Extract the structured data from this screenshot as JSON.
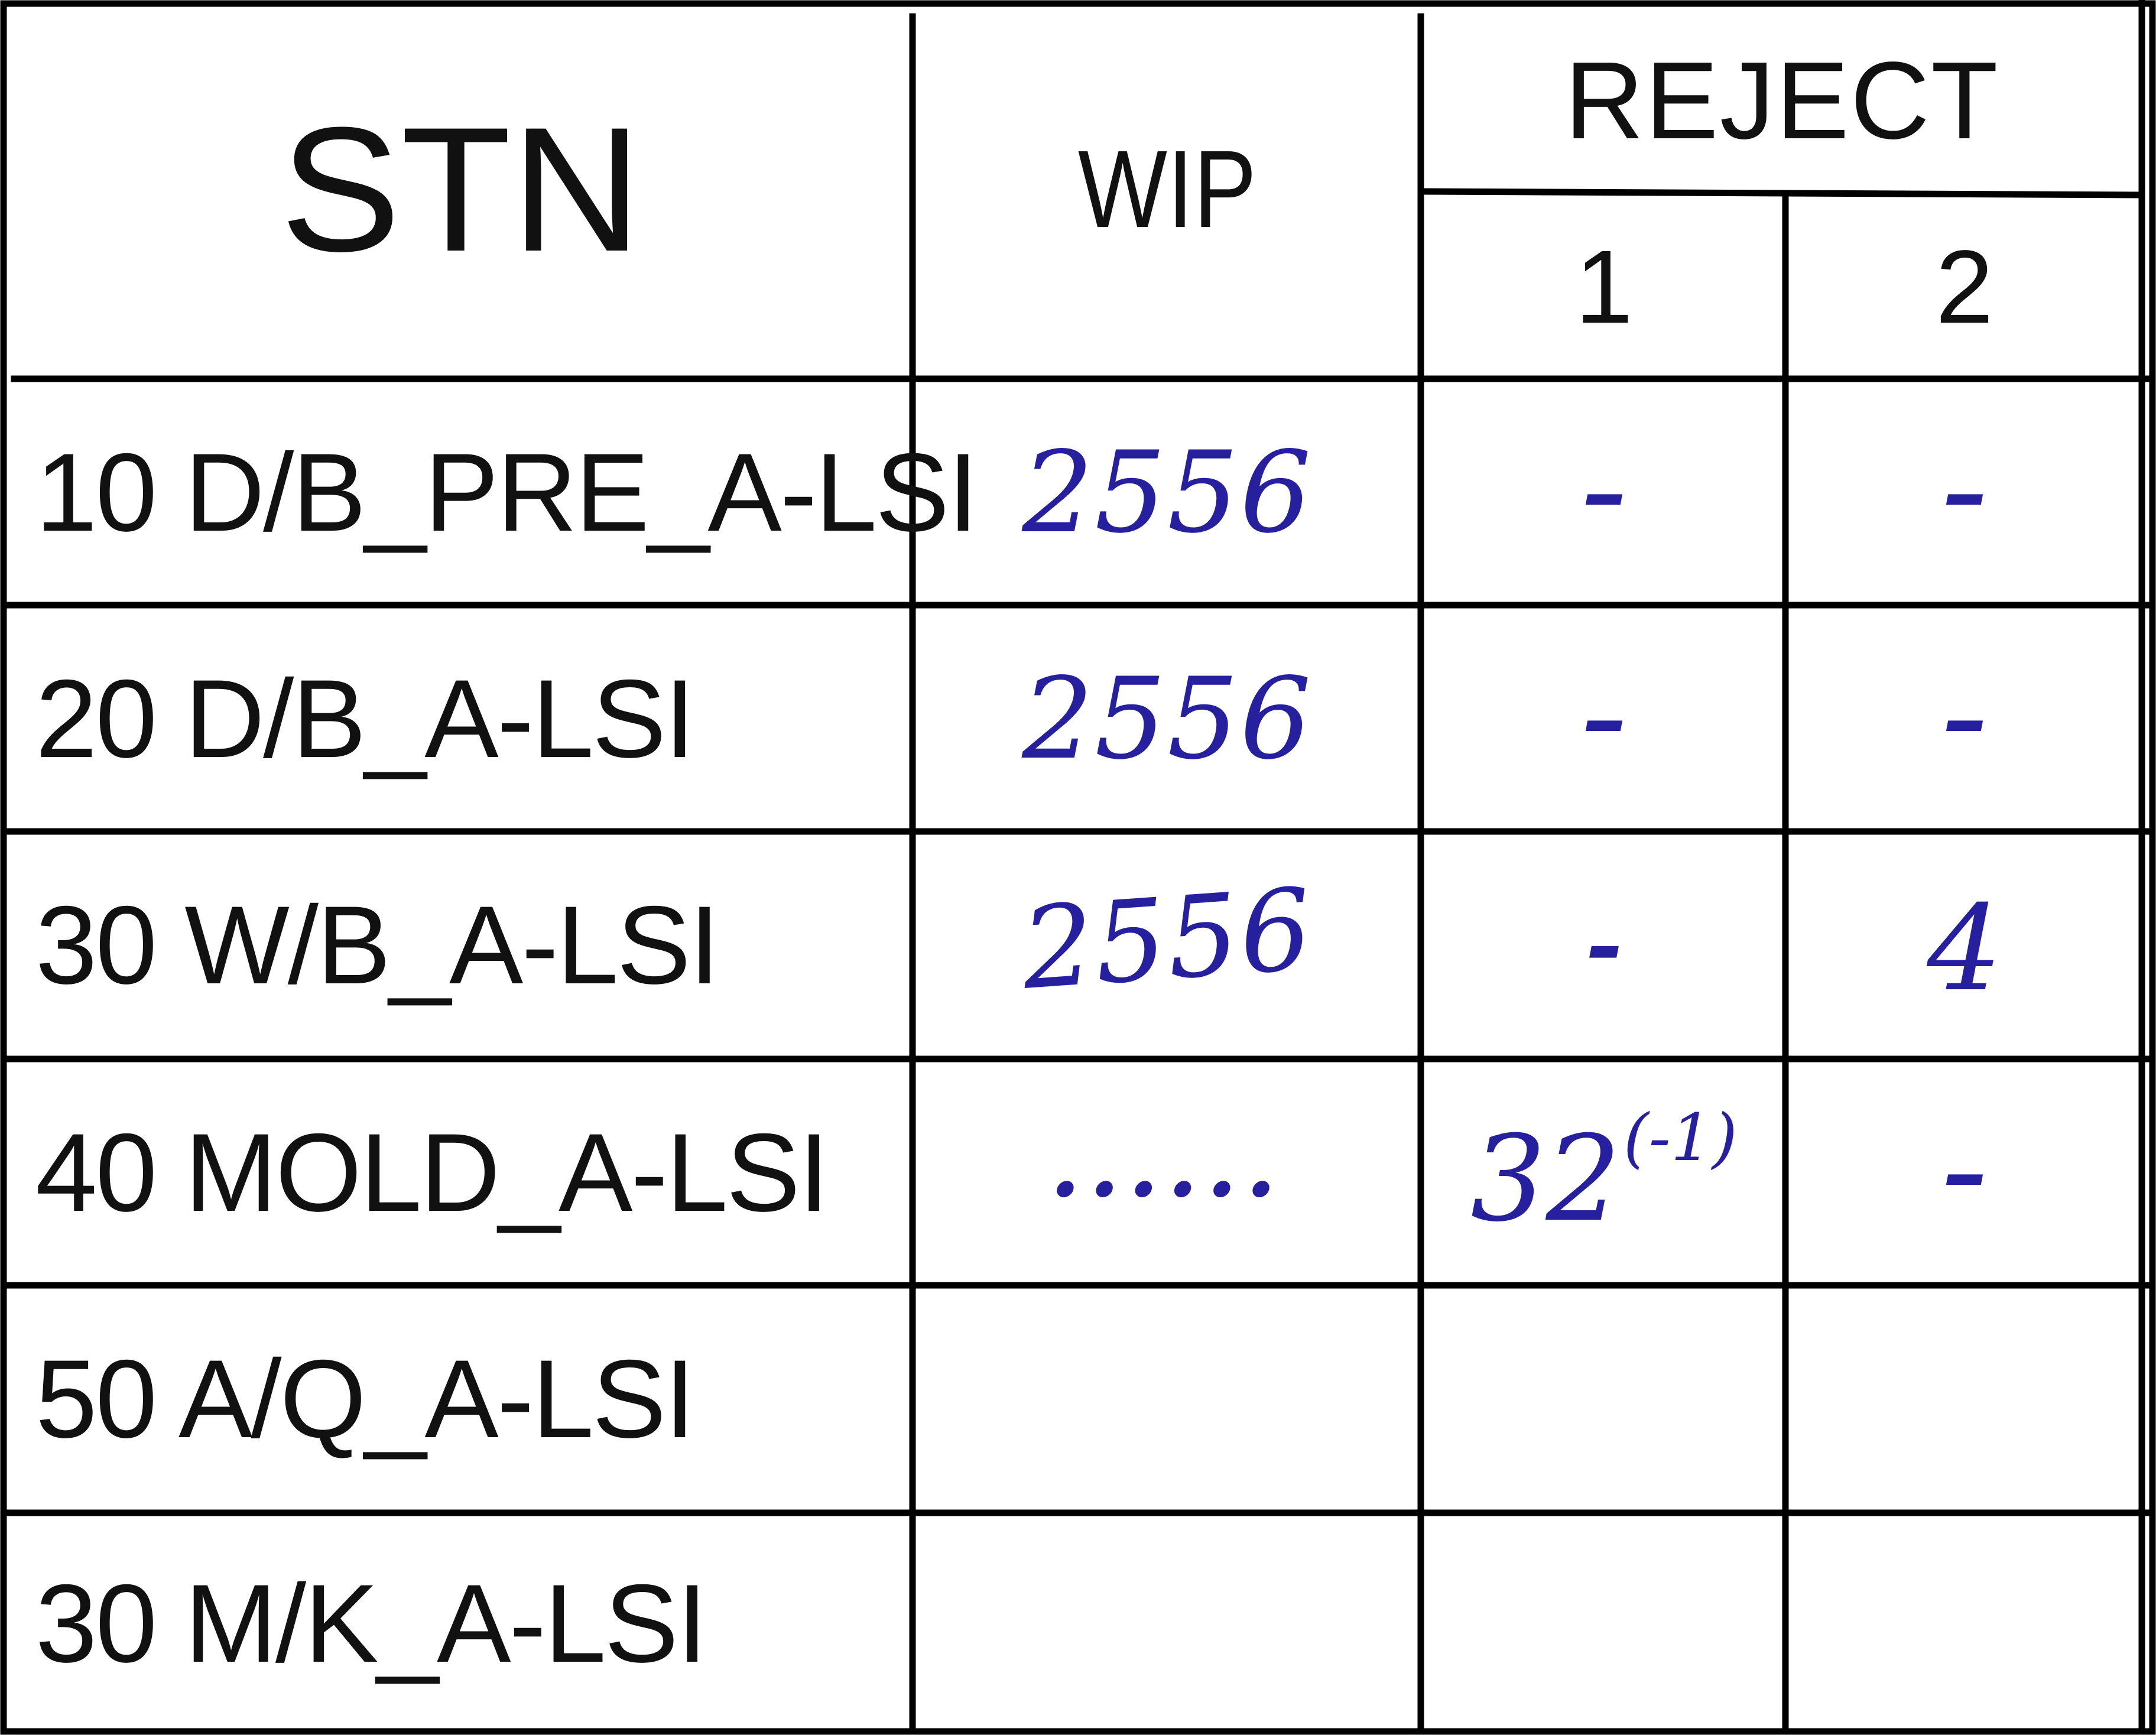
{
  "table": {
    "header": {
      "stn": "STN",
      "wip": "WIP",
      "reject": "REJECT",
      "reject_1": "1",
      "reject_2": "2"
    },
    "rows": [
      {
        "stn": "10 D/B_PRE_A-LSI",
        "wip": "2556",
        "reject_1": "–",
        "reject_2": "–"
      },
      {
        "stn": "20 D/B_A-LSI",
        "wip": "2556",
        "reject_1": "–",
        "reject_2": "–"
      },
      {
        "stn": "30 W/B_A-LSI",
        "wip": "2556",
        "reject_1": "-",
        "reject_2": "4"
      },
      {
        "stn": "40 MOLD_A-LSI",
        "wip": "......",
        "reject_1": "32",
        "reject_1_sup": "(-1)",
        "reject_2": "–"
      },
      {
        "stn": "50 A/Q_A-LSI",
        "wip": "",
        "reject_1": "",
        "reject_2": ""
      },
      {
        "stn": "30 M/K_A-LSI",
        "wip": "",
        "reject_1": "",
        "reject_2": ""
      }
    ]
  },
  "colors": {
    "ink": "#26209e",
    "print": "#111111",
    "rule": "#000000"
  }
}
